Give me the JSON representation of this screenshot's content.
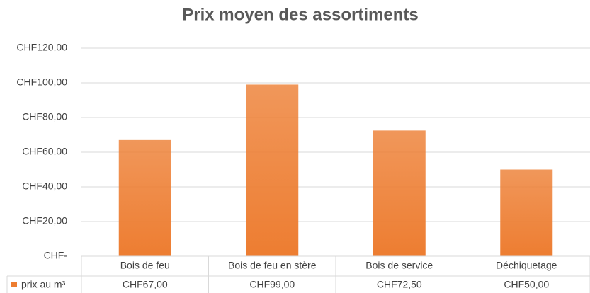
{
  "chart_data": {
    "type": "bar",
    "title": "Prix moyen des assortiments",
    "categories": [
      "Bois de feu",
      "Bois de feu en stère",
      "Bois de service",
      "Déchiquetage"
    ],
    "series": [
      {
        "name": "prix au m³",
        "color": "#ed7d31",
        "values": [
          67,
          99,
          72.5,
          50
        ],
        "value_labels": [
          "CHF67,00",
          "CHF99,00",
          "CHF72,50",
          "CHF50,00"
        ]
      }
    ],
    "ylim": [
      0,
      120
    ],
    "yticks": [
      {
        "value": 0,
        "label": "CHF-"
      },
      {
        "value": 20,
        "label": "CHF20,00"
      },
      {
        "value": 40,
        "label": "CHF40,00"
      },
      {
        "value": 60,
        "label": "CHF60,00"
      },
      {
        "value": 80,
        "label": "CHF80,00"
      },
      {
        "value": 100,
        "label": "CHF100,00"
      },
      {
        "value": 120,
        "label": "CHF120,00"
      }
    ],
    "grid": true
  }
}
